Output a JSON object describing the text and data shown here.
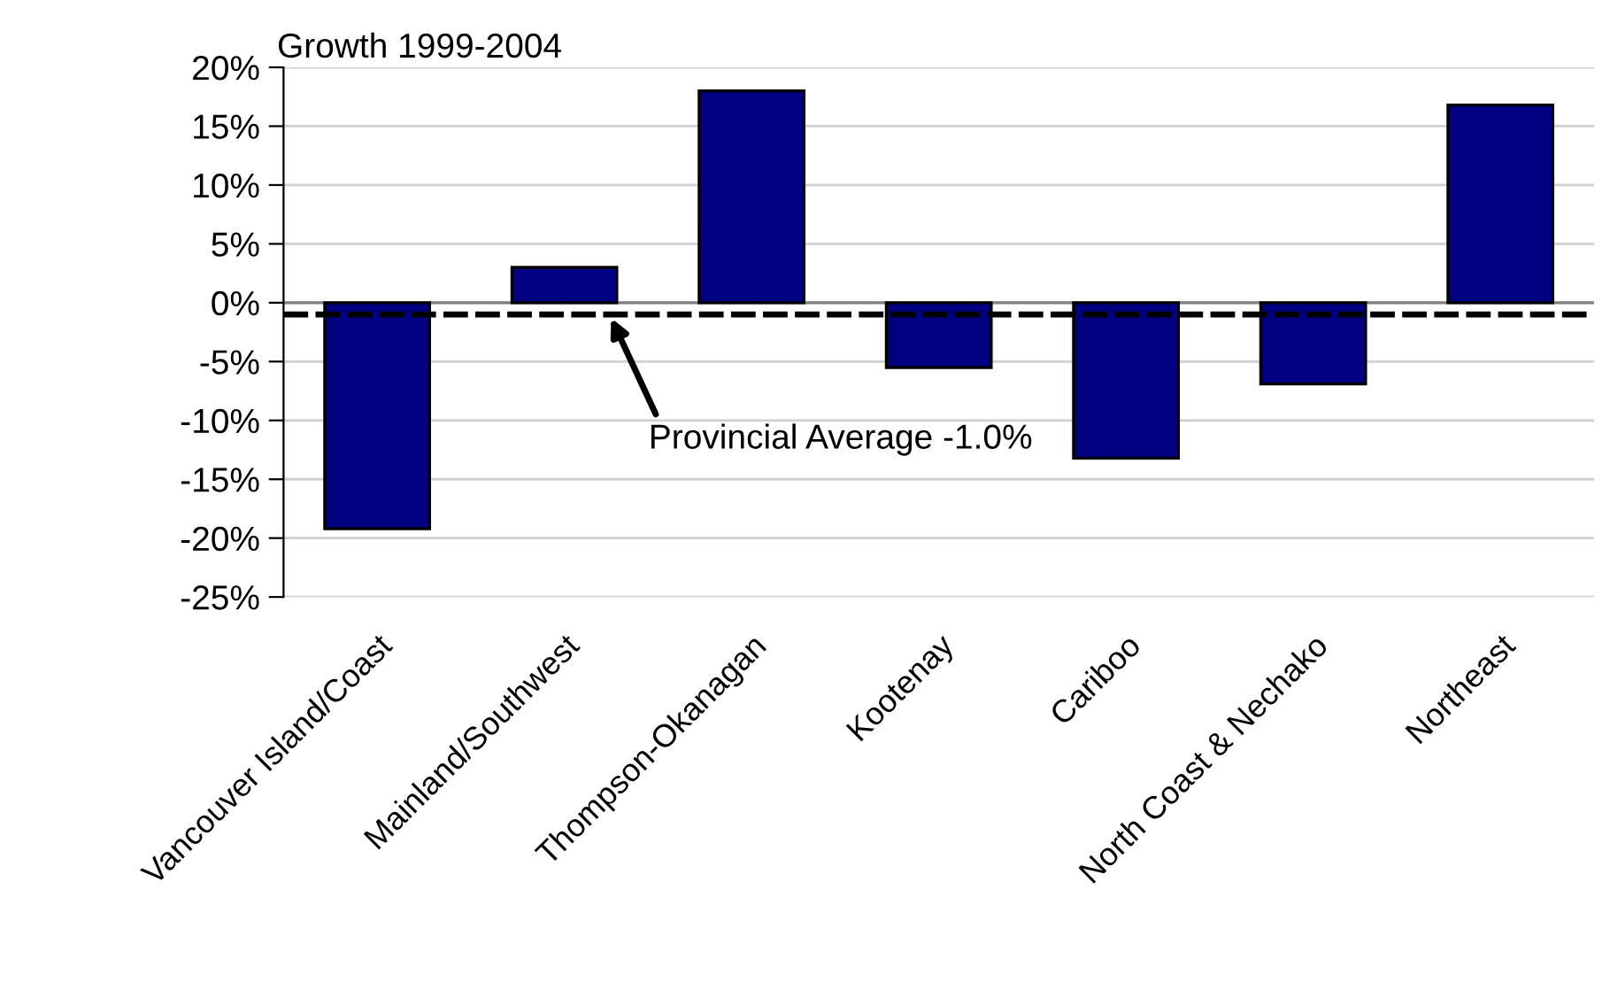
{
  "chart_data": {
    "type": "bar",
    "title": "Growth 1999-2004",
    "categories": [
      "Vancouver Island/Coast",
      "Mainland/Southwest",
      "Thompson-Okanagan",
      "Kootenay",
      "Cariboo",
      "North Coast & Nechako",
      "Northeast"
    ],
    "values": [
      -19.2,
      3.0,
      18.0,
      -5.5,
      -13.2,
      -6.9,
      16.8
    ],
    "color": "#000080",
    "ylim": [
      -25,
      20
    ],
    "yticks": [
      {
        "value": -25,
        "label": "-25%"
      },
      {
        "value": -20,
        "label": "-20%"
      },
      {
        "value": -15,
        "label": "-15%"
      },
      {
        "value": -10,
        "label": "-10%"
      },
      {
        "value": -5,
        "label": "-5%"
      },
      {
        "value": 0,
        "label": "0%"
      },
      {
        "value": 5,
        "label": "5%"
      },
      {
        "value": 10,
        "label": "10%"
      },
      {
        "value": 15,
        "label": "15%"
      },
      {
        "value": 20,
        "label": "20%"
      }
    ],
    "grid": "y",
    "ref_lines": [
      {
        "axis": "y",
        "value": -1.0,
        "label": "Provincial Average -1.0%",
        "color": "#000000",
        "line_style": "dashed"
      }
    ]
  }
}
